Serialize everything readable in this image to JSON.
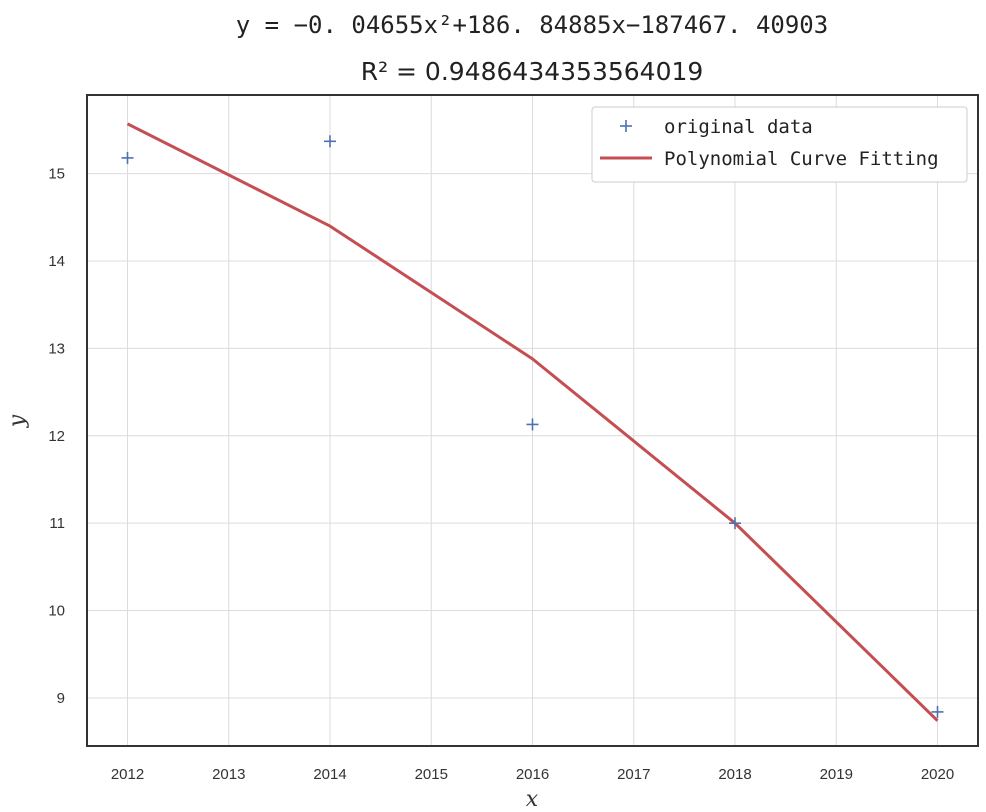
{
  "chart_data": {
    "type": "line",
    "title_line1": "y = −0. 04655x²+186. 84885x−187467. 40903",
    "title_line2": "R² = 0.9486434353564019",
    "xlabel": "x",
    "ylabel": "y",
    "xlim": [
      2011.6,
      2020.4
    ],
    "ylim": [
      8.45,
      15.9
    ],
    "x_ticks": [
      2012,
      2013,
      2014,
      2015,
      2016,
      2017,
      2018,
      2019,
      2020
    ],
    "y_ticks": [
      9,
      10,
      11,
      12,
      13,
      14,
      15
    ],
    "grid": true,
    "legend_position": "top-right",
    "series": [
      {
        "name": "original data",
        "kind": "scatter",
        "marker": "+",
        "color": "#4c72b0",
        "x": [
          2012,
          2014,
          2016,
          2018,
          2020
        ],
        "y": [
          15.18,
          15.37,
          12.13,
          11.0,
          8.84
        ]
      },
      {
        "name": "Polynomial Curve Fitting",
        "kind": "line",
        "color": "#c44e52",
        "x": [
          2012,
          2014,
          2016,
          2018,
          2020
        ],
        "y": [
          15.57,
          14.4,
          12.88,
          11.0,
          8.74
        ]
      }
    ]
  }
}
